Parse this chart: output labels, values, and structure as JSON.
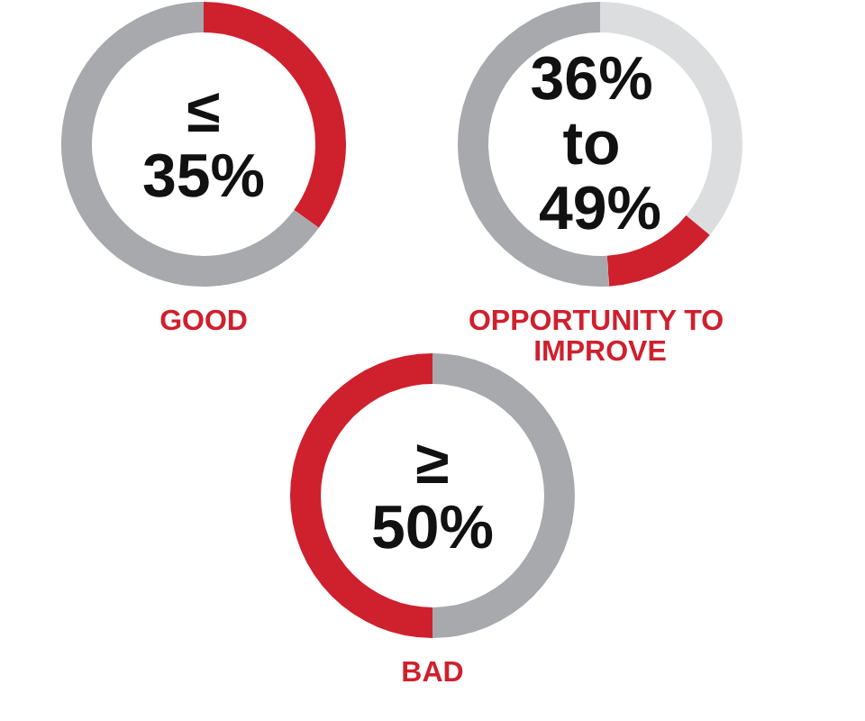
{
  "chart_data": [
    {
      "type": "donut",
      "title": "≤35%",
      "subtitle": "GOOD",
      "categories": [
        null,
        null
      ],
      "values": [
        35,
        65
      ],
      "colors": [
        "#cf202e",
        "#a7a9ac"
      ]
    },
    {
      "type": "donut",
      "title": "36% to 49%",
      "subtitle": "OPPORTUNITY TO IMPROVE",
      "categories": [
        null,
        null,
        null
      ],
      "values": [
        36,
        13,
        51
      ],
      "colors": [
        "#dcdddf",
        "#cf202e",
        "#a7a9ac"
      ]
    },
    {
      "type": "donut",
      "title": "≥50%",
      "subtitle": "BAD",
      "categories": [
        null,
        null
      ],
      "values": [
        50,
        50
      ],
      "colors": [
        "#a7a9ac",
        "#cf202e"
      ]
    }
  ]
}
